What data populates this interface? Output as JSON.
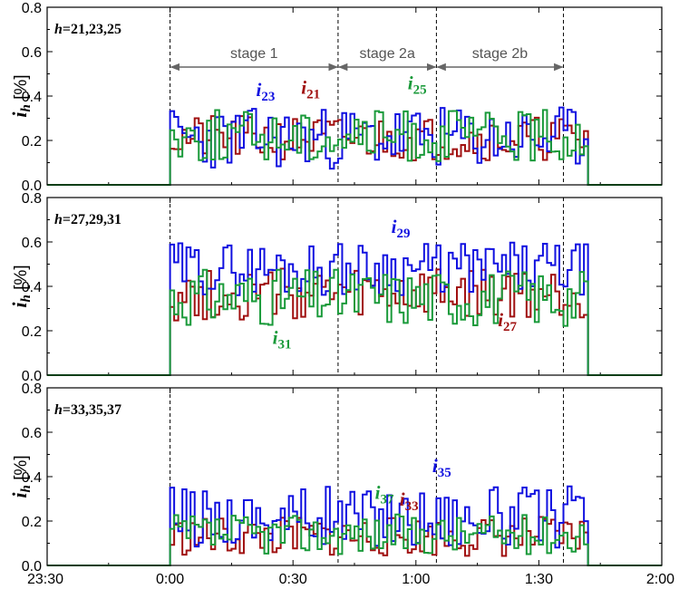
{
  "chart_data": {
    "type": "line",
    "step": true,
    "colors": {
      "21": "#a01010",
      "23": "#1010e0",
      "25": "#1a9a3a",
      "27": "#a01010",
      "29": "#1010e0",
      "31": "#1a9a3a",
      "33": "#a01010",
      "35": "#1010e0",
      "37": "#1a9a3a"
    },
    "x_ticks": [
      "23:30",
      "0:00",
      "0:30",
      "1:00",
      "1:30",
      "2:00"
    ],
    "x_range_min": [
      -30,
      120
    ],
    "active_range_min": [
      0,
      102
    ],
    "ylabel": {
      "main": "i",
      "sub": "h",
      "unit": "[%]"
    },
    "stage_bounds_min": [
      0,
      41,
      65,
      96
    ],
    "stages": [
      "stage 1",
      "stage 2a",
      "stage 2b"
    ],
    "panels": [
      {
        "label": {
          "h": "h",
          "rest": "=21,23,25"
        },
        "ylim": [
          0,
          0.8
        ],
        "yticks": [
          "0.0",
          "0.2",
          "0.4",
          "0.6",
          "0.8"
        ],
        "series": [
          {
            "id": "21",
            "name": "i",
            "sub": "21",
            "base": 0.21,
            "amp": 0.1,
            "seed": 21
          },
          {
            "id": "23",
            "name": "i",
            "sub": "23",
            "base": 0.21,
            "amp": 0.14,
            "seed": 23
          },
          {
            "id": "25",
            "name": "i",
            "sub": "25",
            "base": 0.22,
            "amp": 0.12,
            "seed": 25
          }
        ],
        "annotations": [
          {
            "series": "23",
            "x_min": 21,
            "y": 0.4
          },
          {
            "series": "21",
            "x_min": 32,
            "y": 0.41
          },
          {
            "series": "25",
            "x_min": 58,
            "y": 0.43
          }
        ]
      },
      {
        "label": {
          "h": "h",
          "rest": "=27,29,31"
        },
        "ylim": [
          0,
          0.8
        ],
        "yticks": [
          "0.0",
          "0.2",
          "0.4",
          "0.6",
          "0.8"
        ],
        "series": [
          {
            "id": "27",
            "name": "i",
            "sub": "27",
            "base": 0.36,
            "amp": 0.12,
            "seed": 27
          },
          {
            "id": "29",
            "name": "i",
            "sub": "29",
            "base": 0.48,
            "amp": 0.12,
            "seed": 29
          },
          {
            "id": "31",
            "name": "i",
            "sub": "31",
            "base": 0.35,
            "amp": 0.13,
            "seed": 31
          }
        ],
        "annotations": [
          {
            "series": "29",
            "x_min": 54,
            "y": 0.64
          },
          {
            "series": "31",
            "x_min": 25,
            "y": 0.14
          },
          {
            "series": "27",
            "x_min": 80,
            "y": 0.22
          }
        ]
      },
      {
        "label": {
          "h": "h",
          "rest": "=33,35,37"
        },
        "ylim": [
          0,
          0.8
        ],
        "yticks": [
          "0.0",
          "0.2",
          "0.4",
          "0.6",
          "0.8"
        ],
        "series": [
          {
            "id": "33",
            "name": "i",
            "sub": "33",
            "base": 0.13,
            "amp": 0.09,
            "seed": 33
          },
          {
            "id": "35",
            "name": "i",
            "sub": "35",
            "base": 0.22,
            "amp": 0.14,
            "seed": 35
          },
          {
            "id": "37",
            "name": "i",
            "sub": "37",
            "base": 0.14,
            "amp": 0.09,
            "seed": 37
          }
        ],
        "annotations": [
          {
            "series": "35",
            "x_min": 64,
            "y": 0.42
          },
          {
            "series": "37",
            "x_min": 50,
            "y": 0.3
          },
          {
            "series": "33",
            "x_min": 56,
            "y": 0.27
          }
        ]
      }
    ]
  }
}
